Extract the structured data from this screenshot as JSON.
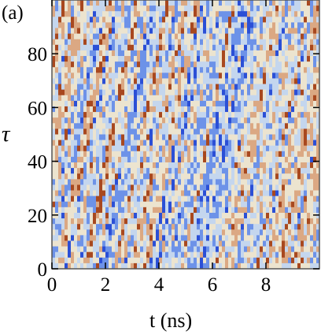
{
  "panel_label": "(a)",
  "chart_data": {
    "type": "heatmap",
    "title": "",
    "xlabel": "t (ns)",
    "ylabel": "τ",
    "xlim": [
      0,
      10
    ],
    "ylim": [
      0,
      100
    ],
    "x_ticks": [
      0,
      2,
      4,
      6,
      8
    ],
    "y_ticks": [
      0,
      20,
      40,
      60,
      80
    ],
    "grid": false,
    "legend": "none",
    "colormap": [
      "#2b4fd6",
      "#6d92e8",
      "#c4d6ee",
      "#ece4cf",
      "#dba883",
      "#a8481f"
    ],
    "frame_color": "#555555"
  }
}
